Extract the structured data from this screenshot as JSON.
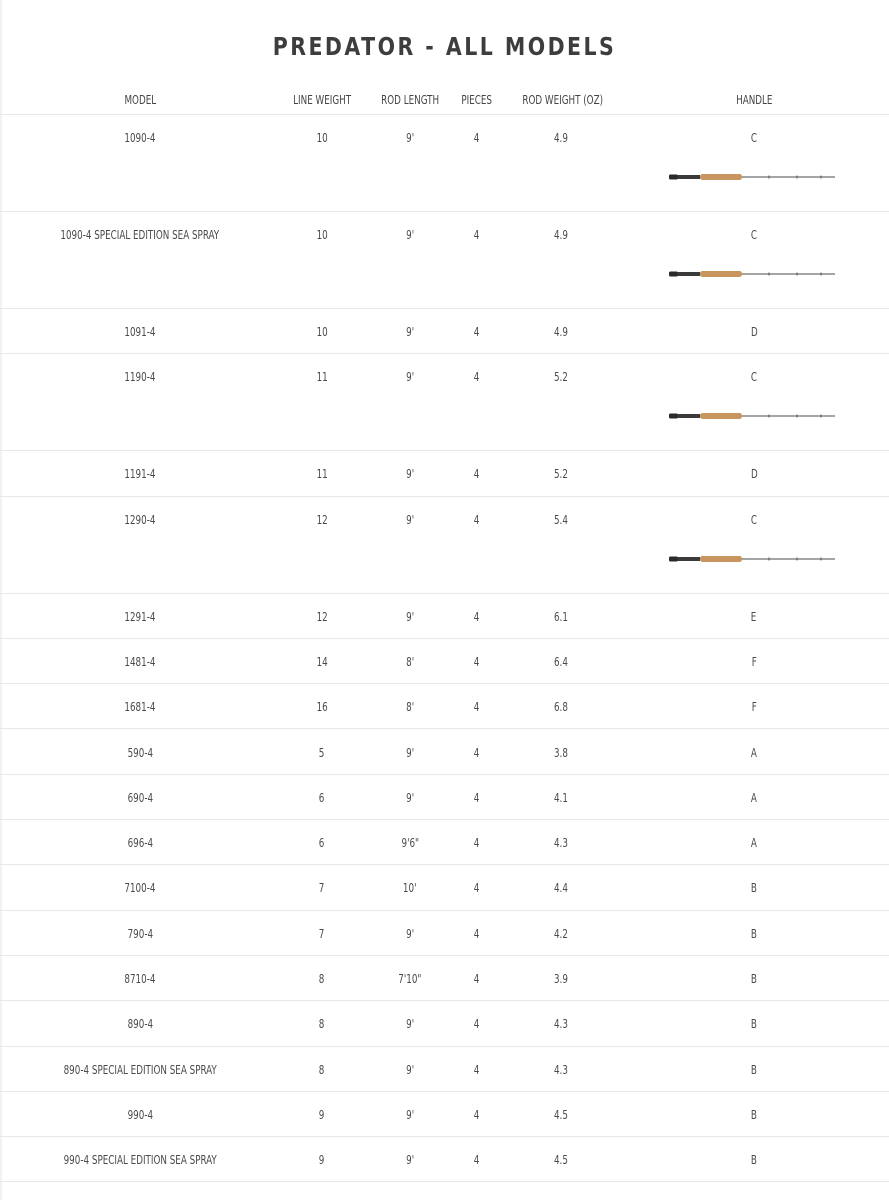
{
  "title": "PREDATOR - ALL MODELS",
  "columns": {
    "model": "MODEL",
    "line_weight": "LINE WEIGHT",
    "rod_length": "ROD LENGTH",
    "pieces": "PIECES",
    "rod_weight": "ROD WEIGHT (OZ)",
    "handle": "HANDLE"
  },
  "colors": {
    "cork": "#c9955e",
    "blank": "#6f6f6f",
    "grip_black": "#2a2a2a",
    "divider": "#e8e8e8"
  },
  "rows": [
    {
      "model": "1090-4",
      "line_weight": "10",
      "rod_length": "9'",
      "pieces": "4",
      "rod_weight": "4.9",
      "handle": "C",
      "has_image": true
    },
    {
      "model": "1090-4 SPECIAL EDITION SEA SPRAY",
      "line_weight": "10",
      "rod_length": "9'",
      "pieces": "4",
      "rod_weight": "4.9",
      "handle": "C",
      "has_image": true
    },
    {
      "model": "1091-4",
      "line_weight": "10",
      "rod_length": "9'",
      "pieces": "4",
      "rod_weight": "4.9",
      "handle": "D",
      "has_image": false
    },
    {
      "model": "1190-4",
      "line_weight": "11",
      "rod_length": "9'",
      "pieces": "4",
      "rod_weight": "5.2",
      "handle": "C",
      "has_image": true
    },
    {
      "model": "1191-4",
      "line_weight": "11",
      "rod_length": "9'",
      "pieces": "4",
      "rod_weight": "5.2",
      "handle": "D",
      "has_image": false
    },
    {
      "model": "1290-4",
      "line_weight": "12",
      "rod_length": "9'",
      "pieces": "4",
      "rod_weight": "5.4",
      "handle": "C",
      "has_image": true
    },
    {
      "model": "1291-4",
      "line_weight": "12",
      "rod_length": "9'",
      "pieces": "4",
      "rod_weight": "6.1",
      "handle": "E",
      "has_image": false
    },
    {
      "model": "1481-4",
      "line_weight": "14",
      "rod_length": "8'",
      "pieces": "4",
      "rod_weight": "6.4",
      "handle": "F",
      "has_image": false
    },
    {
      "model": "1681-4",
      "line_weight": "16",
      "rod_length": "8'",
      "pieces": "4",
      "rod_weight": "6.8",
      "handle": "F",
      "has_image": false
    },
    {
      "model": "590-4",
      "line_weight": "5",
      "rod_length": "9'",
      "pieces": "4",
      "rod_weight": "3.8",
      "handle": "A",
      "has_image": false
    },
    {
      "model": "690-4",
      "line_weight": "6",
      "rod_length": "9'",
      "pieces": "4",
      "rod_weight": "4.1",
      "handle": "A",
      "has_image": false
    },
    {
      "model": "696-4",
      "line_weight": "6",
      "rod_length": "9'6\"",
      "pieces": "4",
      "rod_weight": "4.3",
      "handle": "A",
      "has_image": false
    },
    {
      "model": "7100-4",
      "line_weight": "7",
      "rod_length": "10'",
      "pieces": "4",
      "rod_weight": "4.4",
      "handle": "B",
      "has_image": false
    },
    {
      "model": "790-4",
      "line_weight": "7",
      "rod_length": "9'",
      "pieces": "4",
      "rod_weight": "4.2",
      "handle": "B",
      "has_image": false
    },
    {
      "model": "8710-4",
      "line_weight": "8",
      "rod_length": "7'10\"",
      "pieces": "4",
      "rod_weight": "3.9",
      "handle": "B",
      "has_image": false
    },
    {
      "model": "890-4",
      "line_weight": "8",
      "rod_length": "9'",
      "pieces": "4",
      "rod_weight": "4.3",
      "handle": "B",
      "has_image": false
    },
    {
      "model": "890-4 SPECIAL EDITION SEA SPRAY",
      "line_weight": "8",
      "rod_length": "9'",
      "pieces": "4",
      "rod_weight": "4.3",
      "handle": "B",
      "has_image": false
    },
    {
      "model": "990-4",
      "line_weight": "9",
      "rod_length": "9'",
      "pieces": "4",
      "rod_weight": "4.5",
      "handle": "B",
      "has_image": false
    },
    {
      "model": "990-4 SPECIAL EDITION SEA SPRAY",
      "line_weight": "9",
      "rod_length": "9'",
      "pieces": "4",
      "rod_weight": "4.5",
      "handle": "B",
      "has_image": false
    }
  ]
}
